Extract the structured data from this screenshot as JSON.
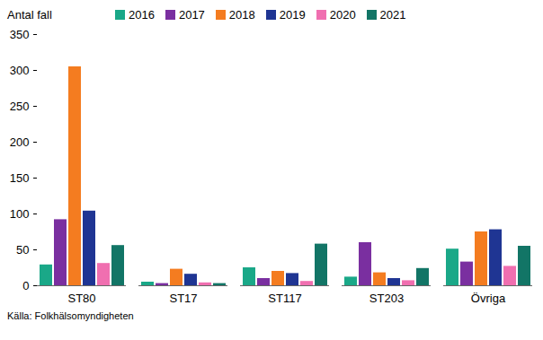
{
  "chart_data": {
    "type": "bar",
    "ylabel": "Antal fall",
    "caption": "Källa: Folkhälsomyndigheten",
    "categories": [
      "ST80",
      "ST17",
      "ST117",
      "ST203",
      "Övriga"
    ],
    "series": [
      {
        "name": "2016",
        "color": "#1aa888",
        "values": [
          29,
          5,
          25,
          12,
          51
        ]
      },
      {
        "name": "2017",
        "color": "#7a2fa0",
        "values": [
          92,
          3,
          10,
          60,
          33
        ]
      },
      {
        "name": "2018",
        "color": "#f47c20",
        "values": [
          305,
          23,
          20,
          18,
          75
        ]
      },
      {
        "name": "2019",
        "color": "#1f3593",
        "values": [
          104,
          16,
          17,
          10,
          78
        ]
      },
      {
        "name": "2020",
        "color": "#f06fb0",
        "values": [
          31,
          4,
          6,
          7,
          27
        ]
      },
      {
        "name": "2021",
        "color": "#127566",
        "values": [
          56,
          3,
          58,
          24,
          55
        ]
      }
    ],
    "ylim": [
      0,
      350
    ],
    "yticks": [
      0,
      50,
      100,
      150,
      200,
      250,
      300,
      350
    ],
    "grid": false,
    "legend": "top"
  }
}
